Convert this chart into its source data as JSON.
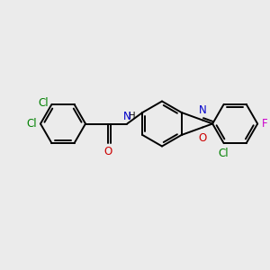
{
  "background_color": "#ebebeb",
  "bond_color": "#000000",
  "bond_width": 1.4,
  "atom_colors": {
    "Cl": "#008000",
    "O": "#cc0000",
    "N": "#0000cc",
    "F": "#cc00cc"
  },
  "font_size": 8.5
}
